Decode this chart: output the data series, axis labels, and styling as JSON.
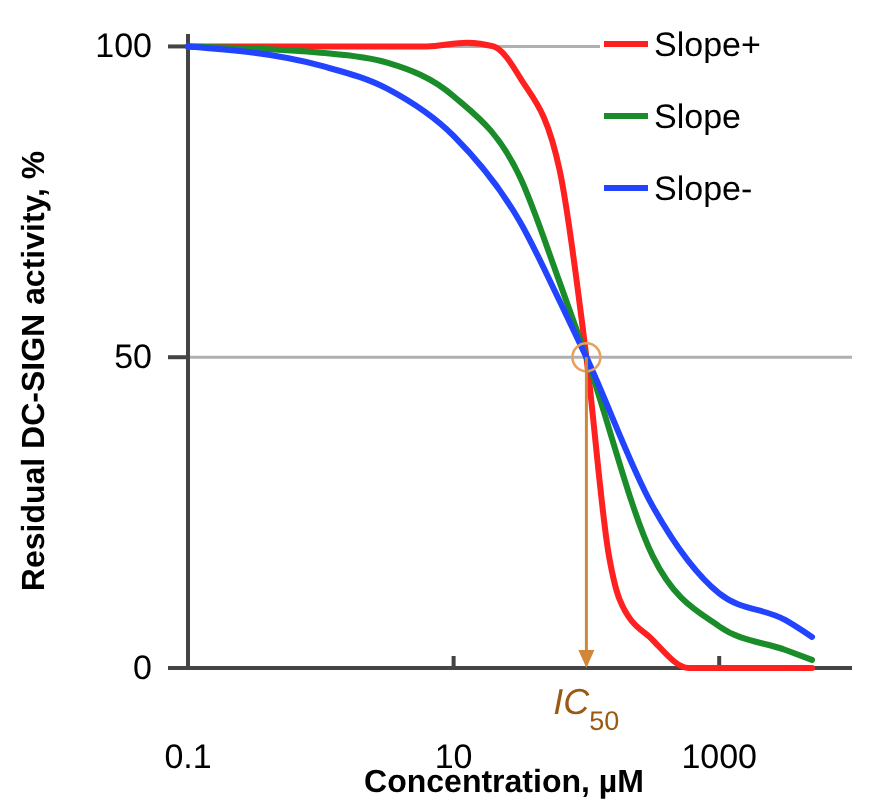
{
  "chart_data": {
    "type": "line",
    "xlabel": "Concentration, µM",
    "ylabel": "Residual DC-SIGN activity, %",
    "log": "x",
    "xlim": [
      0.1,
      10000
    ],
    "xticks": [
      0.1,
      10,
      1000
    ],
    "ylim": [
      0,
      102
    ],
    "yticks": [
      0,
      50,
      100
    ],
    "grid": "y",
    "legend": "top right",
    "marker": "none",
    "line_style": "solid",
    "annotations": [
      {
        "text": "IC$_{50}$",
        "x": 100,
        "y": 50
      }
    ],
    "series": [
      {
        "name": "Slope+",
        "color": "#ff2020",
        "x": [
          0.1,
          1,
          6.3,
          12.6,
          20,
          31.6,
          63,
          100,
          148,
          178,
          316,
          590,
          5000
        ],
        "values": [
          100,
          100,
          100,
          100.6,
          100,
          95,
          80,
          50,
          18,
          11,
          4.5,
          0,
          0
        ]
      },
      {
        "name": "Slope",
        "color": "#1a8c2a",
        "x": [
          0.1,
          1,
          3.16,
          10,
          31.6,
          63,
          100,
          316,
          1000,
          3160,
          5000
        ],
        "values": [
          100,
          99,
          97.4,
          92,
          79,
          62,
          50,
          18,
          6.7,
          2.9,
          1.3
        ]
      },
      {
        "name": "Slope-",
        "color": "#2244ff",
        "x": [
          0.1,
          1,
          3.16,
          10,
          31.6,
          63,
          100,
          316,
          1000,
          3160,
          5000
        ],
        "values": [
          100,
          96.9,
          93.2,
          85.6,
          71.8,
          59,
          50,
          26,
          12,
          7.7,
          5
        ]
      }
    ]
  }
}
